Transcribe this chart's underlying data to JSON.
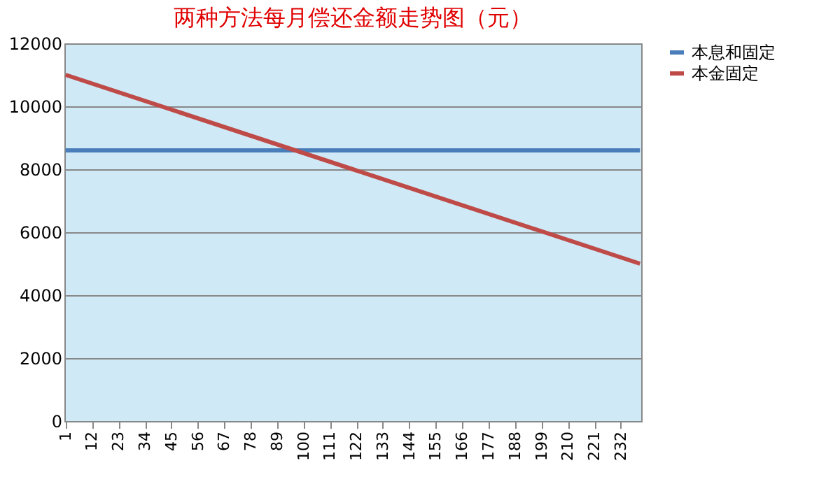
{
  "chart_data": {
    "type": "line",
    "title": "两种方法每月偿还金额走势图（元）",
    "x": [
      1,
      240
    ],
    "series": [
      {
        "name": "本息和固定",
        "color": "#4a7ebb",
        "values": [
          8600,
          8600
        ]
      },
      {
        "name": "本金固定",
        "color": "#be4b48",
        "values": [
          11000,
          5000
        ]
      }
    ],
    "xlim": [
      0.5,
      240.5
    ],
    "xticks": [
      1,
      12,
      23,
      34,
      45,
      56,
      67,
      78,
      89,
      100,
      111,
      122,
      133,
      144,
      155,
      166,
      177,
      188,
      199,
      210,
      221,
      232
    ],
    "ylim": [
      0,
      12000
    ],
    "yticks": [
      0,
      2000,
      4000,
      6000,
      8000,
      10000,
      12000
    ],
    "grid": "y",
    "legend": "right",
    "marker": "none",
    "line_style": "solid"
  }
}
